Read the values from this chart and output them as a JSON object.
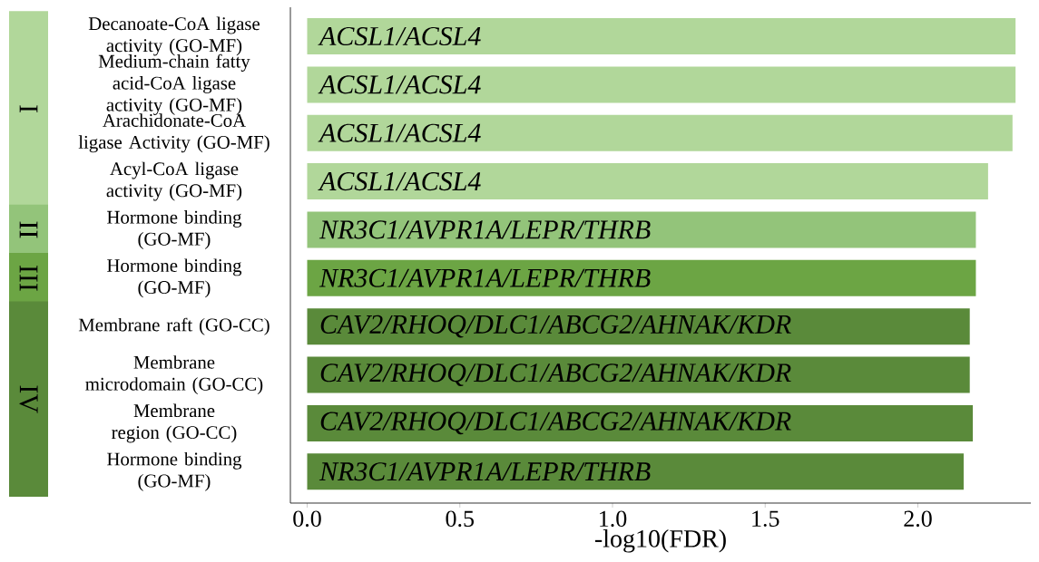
{
  "chart_data": {
    "type": "bar",
    "orientation": "horizontal",
    "xlabel": "-log10(FDR)",
    "categories": [
      "Decanoate-CoA ligase activity (GO-MF)",
      "Medium-chain fatty acid-CoA ligase activity (GO-MF)",
      "Arachidonate-CoA ligase Activity (GO-MF)",
      "Acyl-CoA ligase activity (GO-MF)",
      "Hormone binding (GO-MF)",
      "Hormone binding (GO-MF)",
      "Membrane raft (GO-CC)",
      "Membrane microdomain (GO-CC)",
      "Membrane region (GO-CC)",
      "Hormone binding (GO-MF)"
    ],
    "values": [
      2.32,
      2.32,
      2.31,
      2.23,
      2.19,
      2.19,
      2.17,
      2.17,
      2.18,
      2.15
    ],
    "colors": [
      "#b1d79a",
      "#b1d79a",
      "#b1d79a",
      "#b1d79a",
      "#93c47a",
      "#6ca544",
      "#5a8a3a",
      "#5a8a3a",
      "#5a8a3a",
      "#5a8a3a"
    ],
    "value_labels": [
      "ACSL1/ACSL4",
      "ACSL1/ACSL4",
      "ACSL1/ACSL4",
      "ACSL1/ACSL4",
      "NR3C1/AVPR1A/LEPR/THRB",
      "NR3C1/AVPR1A/LEPR/THRB",
      "CAV2/RHOQ/DLC1/ABCG2/AHNAK/KDR",
      "CAV2/RHOQ/DLC1/ABCG2/AHNAK/KDR",
      "CAV2/RHOQ/DLC1/ABCG2/AHNAK/KDR",
      "NR3C1/AVPR1A/LEPR/THRB"
    ],
    "xlim": [
      -0.055,
      2.37
    ],
    "xticks": [
      {
        "value": 0,
        "label": "0.0"
      },
      0.5,
      {
        "value": 1,
        "label": "1.0"
      },
      1.5,
      {
        "value": 2,
        "label": "2.0"
      }
    ],
    "annotations": [
      "I",
      "II",
      "III",
      "IV"
    ]
  }
}
